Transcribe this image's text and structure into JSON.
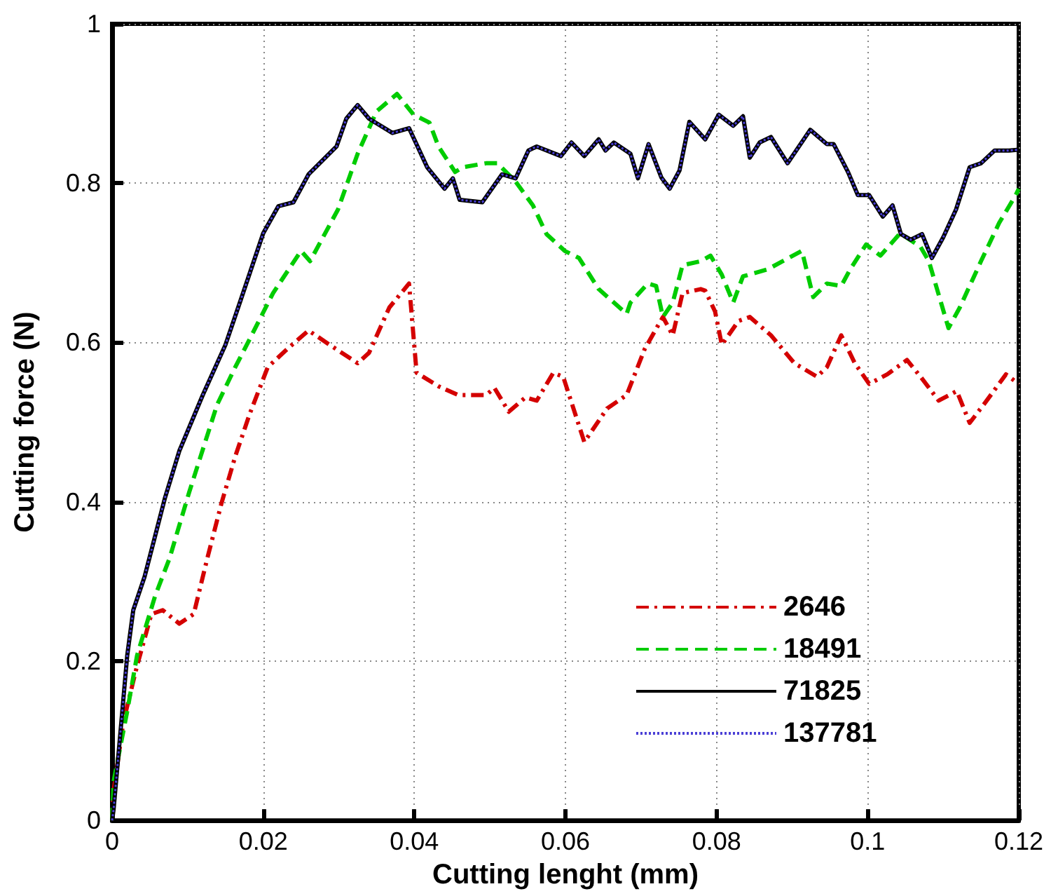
{
  "chart_data": {
    "type": "line",
    "xlabel": "Cutting lenght (mm)",
    "ylabel": "Cutting force (N)",
    "xlim": [
      0,
      0.12
    ],
    "xticks": [
      0,
      0.02,
      0.04,
      0.06,
      0.08,
      0.1,
      0.12
    ],
    "ylim": [
      0,
      1
    ],
    "yticks": [
      0,
      0.2,
      0.4,
      0.6,
      0.8,
      1
    ],
    "grid": true,
    "legend": "bottom right",
    "marker": "none",
    "series": [
      {
        "name": "2646",
        "color": "#d40000",
        "line_style": "dashdot",
        "x": [
          0,
          0.0002,
          0.0015,
          0.0033,
          0.0052,
          0.0067,
          0.0089,
          0.0108,
          0.0126,
          0.0145,
          0.0163,
          0.0182,
          0.0206,
          0.0232,
          0.026,
          0.0288,
          0.0325,
          0.034,
          0.0367,
          0.0393,
          0.0403,
          0.0432,
          0.0458,
          0.0495,
          0.0506,
          0.0525,
          0.0547,
          0.0562,
          0.0584,
          0.0597,
          0.0625,
          0.0655,
          0.0681,
          0.0705,
          0.0729,
          0.0742,
          0.0755,
          0.0779,
          0.0785,
          0.0798,
          0.0807,
          0.0829,
          0.0844,
          0.0872,
          0.0903,
          0.0933,
          0.0946,
          0.0965,
          0.0983,
          0.1002,
          0.1026,
          0.1052,
          0.107,
          0.1094,
          0.1118,
          0.1135,
          0.1156,
          0.1183,
          0.12
        ],
        "values": [
          0,
          0.037,
          0.124,
          0.194,
          0.259,
          0.264,
          0.247,
          0.259,
          0.329,
          0.399,
          0.457,
          0.51,
          0.569,
          0.592,
          0.615,
          0.597,
          0.574,
          0.587,
          0.644,
          0.674,
          0.562,
          0.545,
          0.534,
          0.534,
          0.543,
          0.513,
          0.531,
          0.527,
          0.562,
          0.557,
          0.475,
          0.517,
          0.534,
          0.592,
          0.632,
          0.609,
          0.662,
          0.667,
          0.665,
          0.639,
          0.597,
          0.627,
          0.632,
          0.609,
          0.574,
          0.557,
          0.569,
          0.609,
          0.574,
          0.548,
          0.56,
          0.578,
          0.557,
          0.527,
          0.539,
          0.499,
          0.525,
          0.56,
          0.548
        ]
      },
      {
        "name": "18491",
        "color": "#00cc00",
        "line_style": "dashed",
        "x": [
          0,
          0.0002,
          0.002,
          0.0033,
          0.0057,
          0.0076,
          0.0102,
          0.0139,
          0.0163,
          0.0182,
          0.0213,
          0.025,
          0.0262,
          0.0299,
          0.0325,
          0.035,
          0.0377,
          0.0399,
          0.042,
          0.0432,
          0.0454,
          0.0464,
          0.0495,
          0.051,
          0.0534,
          0.0557,
          0.0575,
          0.0599,
          0.0618,
          0.0644,
          0.0681,
          0.0686,
          0.0709,
          0.072,
          0.0729,
          0.0742,
          0.0755,
          0.0779,
          0.0792,
          0.0807,
          0.0822,
          0.0835,
          0.0868,
          0.0913,
          0.0928,
          0.0946,
          0.0965,
          0.0977,
          0.0998,
          0.1017,
          0.1043,
          0.107,
          0.1081,
          0.1107,
          0.1122,
          0.115,
          0.1174,
          0.1196,
          0.12
        ],
        "values": [
          0,
          0.049,
          0.137,
          0.207,
          0.282,
          0.329,
          0.412,
          0.522,
          0.569,
          0.604,
          0.662,
          0.715,
          0.702,
          0.767,
          0.837,
          0.89,
          0.912,
          0.886,
          0.876,
          0.846,
          0.814,
          0.82,
          0.825,
          0.825,
          0.802,
          0.772,
          0.736,
          0.715,
          0.706,
          0.667,
          0.636,
          0.65,
          0.674,
          0.671,
          0.632,
          0.65,
          0.697,
          0.702,
          0.709,
          0.685,
          0.65,
          0.683,
          0.692,
          0.715,
          0.657,
          0.674,
          0.671,
          0.692,
          0.723,
          0.709,
          0.737,
          0.72,
          0.702,
          0.618,
          0.644,
          0.702,
          0.75,
          0.785,
          0.793
        ]
      },
      {
        "name": "71825",
        "color": "#000000",
        "line_style": "solid",
        "x": [
          0,
          0.0002,
          0.002,
          0.0028,
          0.0043,
          0.007,
          0.0089,
          0.012,
          0.015,
          0.0169,
          0.02,
          0.022,
          0.024,
          0.026,
          0.0297,
          0.031,
          0.0325,
          0.034,
          0.0371,
          0.0393,
          0.0417,
          0.044,
          0.0451,
          0.046,
          0.049,
          0.0516,
          0.0534,
          0.0551,
          0.0562,
          0.0594,
          0.0608,
          0.0625,
          0.0644,
          0.0653,
          0.0664,
          0.0686,
          0.0696,
          0.071,
          0.0727,
          0.0738,
          0.0751,
          0.0764,
          0.0785,
          0.0803,
          0.0822,
          0.0835,
          0.0844,
          0.0857,
          0.0872,
          0.0894,
          0.0924,
          0.0946,
          0.0955,
          0.0974,
          0.0987,
          0.1002,
          0.102,
          0.1033,
          0.1044,
          0.1057,
          0.1072,
          0.1085,
          0.11,
          0.1117,
          0.1135,
          0.115,
          0.1168,
          0.1187,
          0.12
        ],
        "values": [
          0,
          0.014,
          0.207,
          0.264,
          0.306,
          0.405,
          0.464,
          0.534,
          0.597,
          0.65,
          0.737,
          0.771,
          0.776,
          0.811,
          0.846,
          0.881,
          0.898,
          0.881,
          0.863,
          0.869,
          0.82,
          0.793,
          0.806,
          0.779,
          0.776,
          0.811,
          0.806,
          0.841,
          0.846,
          0.834,
          0.851,
          0.834,
          0.855,
          0.841,
          0.851,
          0.837,
          0.806,
          0.849,
          0.807,
          0.793,
          0.816,
          0.877,
          0.855,
          0.886,
          0.872,
          0.884,
          0.832,
          0.851,
          0.858,
          0.825,
          0.867,
          0.849,
          0.849,
          0.814,
          0.785,
          0.785,
          0.758,
          0.772,
          0.736,
          0.729,
          0.736,
          0.706,
          0.732,
          0.767,
          0.82,
          0.825,
          0.841,
          0.841,
          0.842
        ]
      },
      {
        "name": "137781",
        "color": "#4a3fd6",
        "line_style": "dotted",
        "x": [
          0,
          0.0002,
          0.002,
          0.0028,
          0.0043,
          0.007,
          0.0089,
          0.012,
          0.015,
          0.0169,
          0.02,
          0.022,
          0.024,
          0.026,
          0.0297,
          0.031,
          0.0325,
          0.034,
          0.0371,
          0.0393,
          0.0417,
          0.044,
          0.0451,
          0.046,
          0.049,
          0.0516,
          0.0534,
          0.0551,
          0.0562,
          0.0594,
          0.0608,
          0.0625,
          0.0644,
          0.0653,
          0.0664,
          0.0686,
          0.0696,
          0.071,
          0.0727,
          0.0738,
          0.0751,
          0.0764,
          0.0785,
          0.0803,
          0.0822,
          0.0835,
          0.0844,
          0.0857,
          0.0872,
          0.0894,
          0.0924,
          0.0946,
          0.0955,
          0.0974,
          0.0987,
          0.1002,
          0.102,
          0.1033,
          0.1044,
          0.1057,
          0.1072,
          0.1085,
          0.11,
          0.1117,
          0.1135,
          0.115,
          0.1168,
          0.1187,
          0.12
        ],
        "values": [
          0,
          0.014,
          0.207,
          0.264,
          0.306,
          0.405,
          0.464,
          0.534,
          0.597,
          0.65,
          0.737,
          0.771,
          0.776,
          0.811,
          0.846,
          0.881,
          0.898,
          0.881,
          0.863,
          0.869,
          0.82,
          0.793,
          0.806,
          0.779,
          0.776,
          0.811,
          0.806,
          0.841,
          0.846,
          0.834,
          0.851,
          0.834,
          0.855,
          0.841,
          0.851,
          0.837,
          0.806,
          0.849,
          0.807,
          0.793,
          0.816,
          0.877,
          0.855,
          0.886,
          0.872,
          0.884,
          0.832,
          0.851,
          0.858,
          0.825,
          0.867,
          0.849,
          0.849,
          0.814,
          0.785,
          0.785,
          0.758,
          0.772,
          0.736,
          0.729,
          0.736,
          0.706,
          0.732,
          0.767,
          0.82,
          0.825,
          0.841,
          0.841,
          0.842
        ]
      }
    ]
  }
}
